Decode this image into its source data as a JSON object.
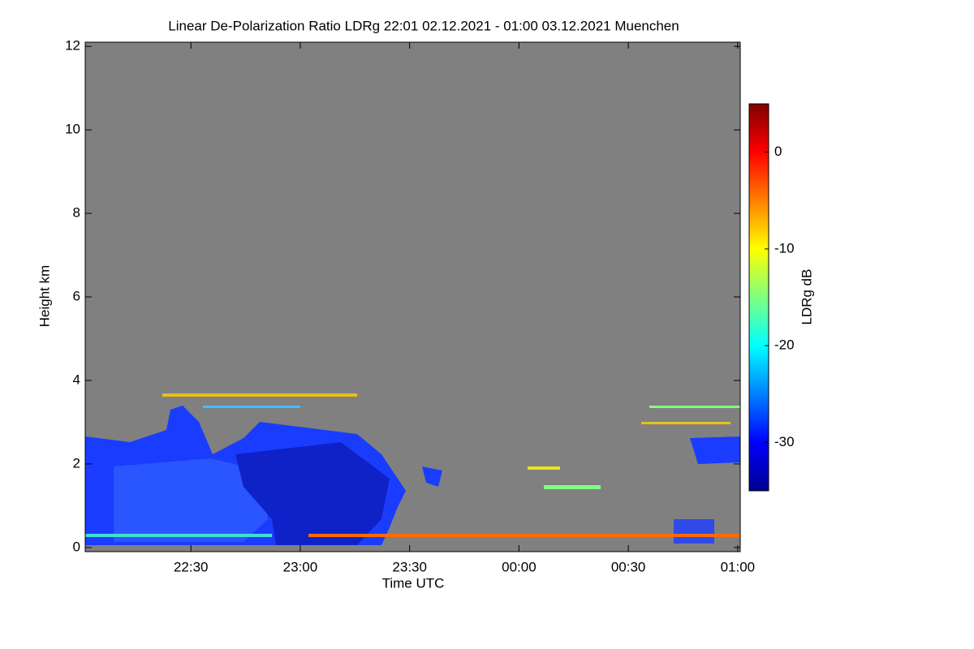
{
  "chart_data": {
    "type": "heatmap",
    "title": "Linear De-Polarization Ratio LDRg   22:01 02.12.2021 - 01:00 03.12.2021 Muenchen",
    "x_label": "Time UTC",
    "y_label": "Height km",
    "colorbar_label": "LDRg dB",
    "xlim": [
      1,
      180.7
    ],
    "xticks": [
      {
        "value": 30,
        "label": "22:30"
      },
      {
        "value": 60,
        "label": "23:00"
      },
      {
        "value": 90,
        "label": "23:30"
      },
      {
        "value": 120,
        "label": "00:00"
      },
      {
        "value": 150,
        "label": "00:30"
      },
      {
        "value": 180,
        "label": "01:00"
      }
    ],
    "ylim": [
      -0.1,
      12.1
    ],
    "yticks": [
      0,
      2,
      4,
      6,
      8,
      10,
      12
    ],
    "clim": [
      -35,
      5
    ],
    "cticks": [
      0,
      -10,
      -20,
      -30
    ],
    "colorscale": [
      "#00008f",
      "#0000ff",
      "#0080ff",
      "#00ffff",
      "#80ff80",
      "#ffff00",
      "#ff8000",
      "#ff0000",
      "#800000"
    ]
  }
}
